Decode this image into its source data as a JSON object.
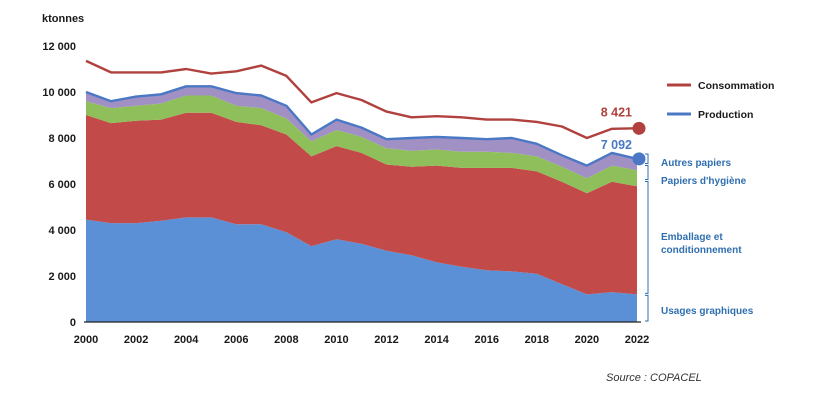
{
  "chart_data": {
    "type": "area",
    "unit": "ktonnes",
    "x": [
      2000,
      2001,
      2002,
      2003,
      2004,
      2005,
      2006,
      2007,
      2008,
      2009,
      2010,
      2011,
      2012,
      2013,
      2014,
      2015,
      2016,
      2017,
      2018,
      2019,
      2020,
      2021,
      2022
    ],
    "xticks": [
      "2000",
      "2002",
      "2004",
      "2006",
      "2008",
      "2010",
      "2012",
      "2014",
      "2016",
      "2018",
      "2020",
      "2022"
    ],
    "yticks": [
      "0",
      "2 000",
      "4 000",
      "6 000",
      "8 000",
      "10 000",
      "12 000"
    ],
    "ylim": [
      0,
      12000
    ],
    "stacked_series": [
      {
        "name": "Usages graphiques",
        "color": "#5b8fd6",
        "values": [
          4450,
          4300,
          4300,
          4400,
          4550,
          4550,
          4250,
          4250,
          3900,
          3300,
          3600,
          3400,
          3100,
          2900,
          2600,
          2400,
          2250,
          2200,
          2100,
          1650,
          1200,
          1300,
          1200
        ]
      },
      {
        "name": "Emballage et conditionnement",
        "color": "#c24a48",
        "values": [
          4550,
          4350,
          4450,
          4400,
          4550,
          4550,
          4450,
          4300,
          4250,
          3900,
          4050,
          3950,
          3750,
          3850,
          4200,
          4300,
          4450,
          4500,
          4450,
          4450,
          4400,
          4800,
          4700
        ]
      },
      {
        "name": "Papiers d'hygiène",
        "color": "#8fbf5a",
        "values": [
          600,
          650,
          650,
          700,
          750,
          750,
          700,
          750,
          700,
          650,
          700,
          700,
          700,
          700,
          700,
          700,
          700,
          650,
          650,
          650,
          650,
          700,
          700
        ]
      },
      {
        "name": "Autres papiers",
        "color": "#a190c4",
        "values": [
          400,
          300,
          400,
          400,
          400,
          400,
          550,
          550,
          550,
          300,
          450,
          400,
          400,
          550,
          550,
          600,
          550,
          650,
          550,
          500,
          550,
          550,
          492
        ]
      }
    ],
    "lines": [
      {
        "name": "Consommation",
        "color": "#b0413e",
        "values": [
          11350,
          10850,
          10850,
          10850,
          11000,
          10800,
          10900,
          11150,
          10700,
          9550,
          9950,
          9650,
          9150,
          8900,
          8950,
          8900,
          8800,
          8800,
          8700,
          8500,
          8000,
          8400,
          8421
        ]
      },
      {
        "name": "Production",
        "color": "#4a78c4",
        "values": [
          10000,
          9600,
          9800,
          9900,
          10250,
          10250,
          9950,
          9850,
          9400,
          8150,
          8800,
          8450,
          7950,
          8000,
          8050,
          8000,
          7950,
          8000,
          7750,
          7250,
          6800,
          7350,
          7092
        ]
      }
    ],
    "end_labels": {
      "consommation": "8 421",
      "production": "7 092"
    },
    "band_labels": [
      "Autres papiers",
      "Papiers d'hygiène",
      "Emballage et conditionnement",
      "Usages graphiques"
    ]
  },
  "source": "Source : COPACEL"
}
